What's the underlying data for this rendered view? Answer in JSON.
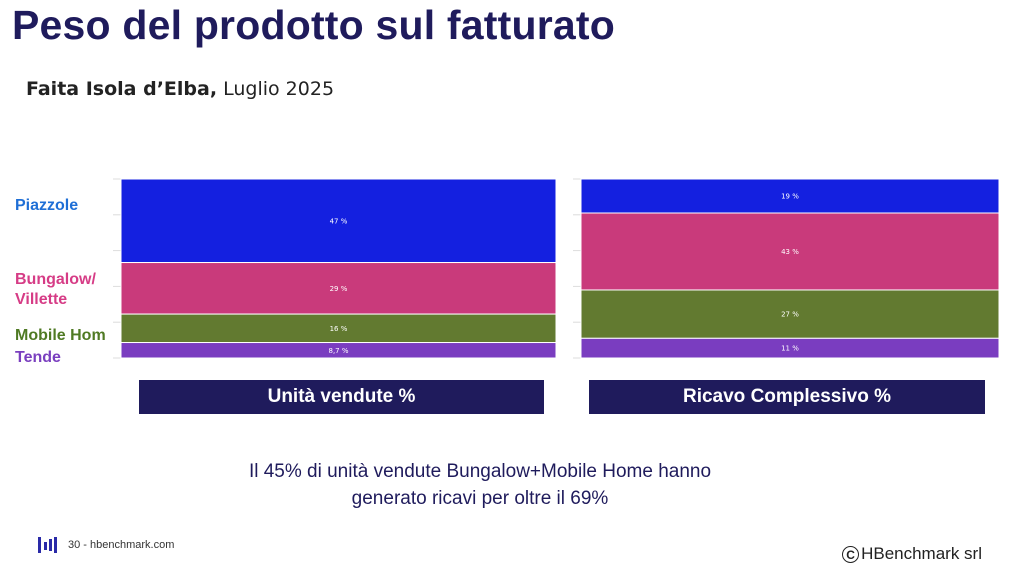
{
  "header": {
    "title": "Peso del prodotto sul fatturato",
    "subtitle_bold": "Faita Isola d’Elba,",
    "subtitle_rest": " Luglio 2025"
  },
  "legend": [
    {
      "label": "Piazzole",
      "color": "#1f6fd6"
    },
    {
      "label": "Bungalow/\nVillette",
      "color": "#d63c86"
    },
    {
      "label": "Mobile Hom",
      "color": "#4f7a23"
    },
    {
      "label": "Tende",
      "color": "#7a3fbf"
    }
  ],
  "chart_data": {
    "type": "bar",
    "stacked": true,
    "normalized": true,
    "categories": [
      "Unità vendute %",
      "Ricavo Complessivo %"
    ],
    "series": [
      {
        "name": "Piazzole",
        "color": "#1420e0",
        "values": [
          47,
          19
        ],
        "labels": [
          "47 %",
          "19 %"
        ]
      },
      {
        "name": "Bungalow/Villette",
        "color": "#c93a7b",
        "values": [
          29,
          43
        ],
        "labels": [
          "29 %",
          "43 %"
        ]
      },
      {
        "name": "Mobile Hom",
        "color": "#627a30",
        "values": [
          16,
          27
        ],
        "labels": [
          "16 %",
          "27 %"
        ]
      },
      {
        "name": "Tende",
        "color": "#7a3dc0",
        "values": [
          8.7,
          11
        ],
        "labels": [
          "8,7 %",
          "11 %"
        ]
      }
    ]
  },
  "note": {
    "line1": "Il 45% di unità vendute Bungalow+Mobile Home hanno",
    "line2": "generato ricavi per oltre il 69%"
  },
  "footer": {
    "left_text": "30 - hbenchmark.com",
    "right_text": "HBenchmark srl",
    "copyright_symbol": "C",
    "logo_icon": "bars-logo-icon"
  }
}
